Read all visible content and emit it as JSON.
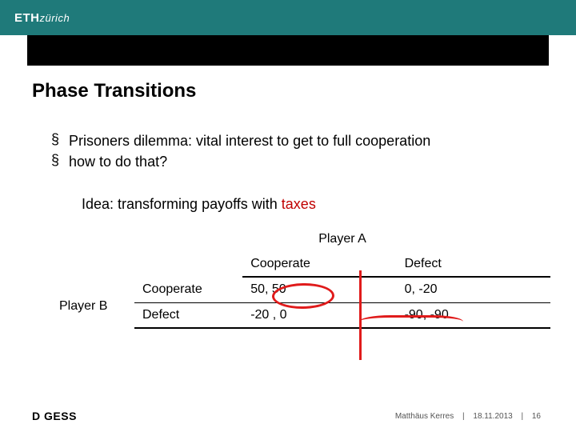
{
  "header": {
    "logo_main": "ETH",
    "logo_sub": "zürich"
  },
  "title": "Phase Transitions",
  "bullets": [
    "Prisoners dilemma: vital interest to get to full cooperation",
    "how to do that?"
  ],
  "sub_idea_prefix": "Idea: transforming payoffs with ",
  "sub_idea_highlight": "taxes",
  "table": {
    "player_a_label": "Player A",
    "player_b_label": "Player B",
    "col_headers": [
      "Cooperate",
      "Defect"
    ],
    "row_headers": [
      "Cooperate",
      "Defect"
    ],
    "cells": [
      [
        {
          "a": "50, 50"
        },
        {
          "a": "0, ",
          "strike": "-20"
        }
      ],
      [
        {
          "strike": "-20 ",
          "a": ", 0"
        },
        {
          "strike_pair": "-90, -90"
        }
      ]
    ]
  },
  "footer": {
    "dept": "D GESS",
    "author": "Matthäus Kerres",
    "date": "18.11.2013",
    "page": "16"
  },
  "colors": {
    "teal": "#1f7a7a",
    "red": "#c00000",
    "annot": "#e01b1b"
  }
}
